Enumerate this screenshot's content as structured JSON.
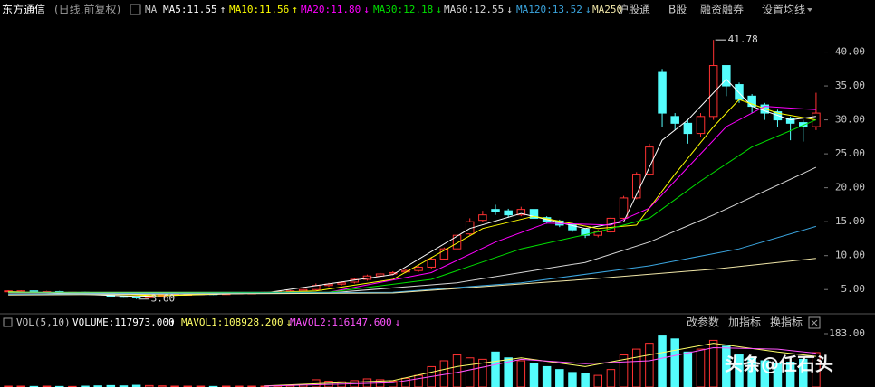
{
  "chart_data": {
    "type": "candlestick",
    "title": "东方通信",
    "subtitle": "(日线,前复权)",
    "ma_label": "MA",
    "toolbar": [
      "沪股通",
      "B股",
      "融资融券",
      "设置均线"
    ],
    "up_color": "#ff3232",
    "down_color": "#54fcfc",
    "open": [
      4.7,
      4.8,
      4.8,
      4.7,
      4.7,
      4.6,
      4.6,
      4.5,
      4.3,
      4.0,
      3.9,
      3.8,
      4.0,
      4.2,
      4.3,
      4.4,
      4.4,
      4.3,
      4.4,
      4.5,
      4.5,
      4.6,
      4.7,
      4.8,
      5.0,
      5.6,
      5.8,
      6.1,
      6.5,
      7.0,
      7.3,
      7.6,
      7.8,
      8.3,
      9.5,
      11.0,
      13.2,
      15.2,
      16.8,
      16.6,
      16.0,
      16.8,
      15.6,
      15.1,
      14.6,
      13.9,
      13.0,
      13.5,
      15.5,
      18.5,
      22.0,
      37.0,
      30.5,
      29.5,
      28.0,
      30.5,
      38.0,
      35.2,
      33.5,
      32.2,
      31.2,
      30.2,
      29.6,
      29.0
    ],
    "high": [
      4.9,
      4.9,
      4.9,
      4.8,
      4.8,
      4.7,
      4.7,
      4.6,
      4.4,
      4.1,
      4.0,
      4.1,
      4.3,
      4.4,
      4.4,
      4.5,
      4.5,
      4.5,
      4.6,
      4.6,
      4.7,
      4.8,
      4.9,
      5.2,
      5.9,
      6.0,
      6.2,
      6.7,
      7.2,
      7.5,
      7.7,
      8.0,
      8.6,
      9.8,
      11.2,
      13.3,
      15.5,
      16.6,
      17.5,
      16.9,
      17.2,
      16.9,
      15.8,
      15.3,
      14.8,
      14.0,
      13.8,
      15.8,
      18.8,
      22.3,
      26.5,
      37.5,
      31.0,
      30.0,
      31.0,
      41.78,
      38.0,
      35.5,
      33.8,
      32.5,
      31.5,
      30.5,
      30.0,
      34.0
    ],
    "low": [
      4.6,
      4.7,
      4.6,
      4.6,
      4.5,
      4.5,
      4.4,
      4.2,
      3.9,
      3.8,
      3.6,
      3.7,
      3.9,
      4.1,
      4.2,
      4.3,
      4.2,
      4.2,
      4.3,
      4.4,
      4.4,
      4.5,
      4.6,
      4.7,
      4.9,
      5.4,
      5.6,
      5.9,
      6.3,
      6.8,
      7.1,
      7.4,
      7.6,
      8.1,
      9.3,
      10.8,
      13.0,
      15.0,
      16.0,
      15.6,
      15.8,
      15.2,
      14.7,
      14.2,
      13.5,
      12.6,
      12.7,
      13.3,
      15.3,
      18.3,
      21.8,
      29.0,
      28.5,
      26.5,
      27.5,
      30.0,
      33.5,
      32.5,
      31.0,
      30.0,
      29.0,
      27.0,
      26.8,
      28.5
    ],
    "close": [
      4.8,
      4.8,
      4.7,
      4.7,
      4.6,
      4.6,
      4.5,
      4.3,
      4.0,
      3.9,
      3.8,
      4.0,
      4.2,
      4.3,
      4.3,
      4.4,
      4.3,
      4.4,
      4.5,
      4.5,
      4.6,
      4.7,
      4.8,
      5.0,
      5.6,
      5.8,
      6.0,
      6.5,
      7.0,
      7.3,
      7.5,
      7.8,
      8.3,
      9.5,
      11.0,
      13.0,
      15.0,
      16.0,
      16.5,
      16.0,
      16.8,
      15.5,
      15.0,
      14.5,
      13.8,
      13.0,
      13.5,
      15.5,
      18.5,
      22.0,
      26.0,
      31.0,
      29.5,
      28.0,
      30.5,
      38.0,
      35.0,
      33.0,
      32.0,
      31.0,
      30.0,
      29.5,
      29.0,
      31.0
    ],
    "volume": [
      3,
      3,
      2,
      3,
      2,
      2,
      3,
      4,
      5,
      4,
      6,
      5,
      4,
      3,
      3,
      3,
      2,
      3,
      3,
      3,
      3,
      4,
      5,
      8,
      25,
      20,
      18,
      22,
      28,
      25,
      20,
      30,
      40,
      70,
      90,
      110,
      100,
      95,
      120,
      100,
      90,
      80,
      70,
      60,
      50,
      45,
      40,
      60,
      110,
      130,
      150,
      175,
      165,
      120,
      130,
      160,
      140,
      110,
      100,
      90,
      80,
      85,
      95,
      118
    ],
    "annotations": [
      {
        "label": "41.78",
        "value": 41.78,
        "at": "high"
      },
      {
        "label": "3.60",
        "value": 3.6,
        "at": "low"
      }
    ],
    "moving_averages": [
      {
        "name": "MA5:11.55",
        "trend": "↑",
        "color": "#ffffff",
        "x": [
          0,
          10,
          20,
          30,
          36,
          40,
          45,
          48,
          51,
          53,
          56,
          58,
          61,
          63
        ],
        "values": [
          4.7,
          4.0,
          4.5,
          7.2,
          14,
          16.2,
          14,
          15,
          27,
          30,
          36,
          32,
          30,
          30.5
        ]
      },
      {
        "name": "MA10:11.56",
        "trend": "↑",
        "color": "#ffff00",
        "x": [
          0,
          12,
          24,
          30,
          37,
          41,
          46,
          49,
          52,
          55,
          57,
          60,
          63
        ],
        "values": [
          4.7,
          4.1,
          4.8,
          6.5,
          14,
          15.8,
          14,
          14.5,
          22,
          29,
          33,
          31,
          30
        ]
      },
      {
        "name": "MA20:11.80",
        "trend": "↓",
        "color": "#ff00ff",
        "x": [
          0,
          25,
          33,
          38,
          42,
          47,
          50,
          53,
          56,
          59,
          63
        ],
        "values": [
          4.6,
          4.6,
          7.5,
          12,
          14.8,
          14.5,
          17,
          23,
          29,
          32,
          31.5
        ]
      },
      {
        "name": "MA30:12.18",
        "trend": "↓",
        "color": "#00e000",
        "x": [
          0,
          25,
          33,
          40,
          46,
          50,
          54,
          58,
          63
        ],
        "values": [
          4.6,
          4.6,
          6.5,
          11,
          13.5,
          15.5,
          21,
          26,
          30
        ]
      },
      {
        "name": "MA60:12.55",
        "trend": "↓",
        "color": "#d8d8d8",
        "x": [
          0,
          25,
          35,
          45,
          50,
          55,
          63
        ],
        "values": [
          4.5,
          4.5,
          6.0,
          9,
          12,
          16,
          23
        ]
      },
      {
        "name": "MA120:13.52",
        "trend": "↓",
        "color": "#3ba6e0",
        "x": [
          0,
          30,
          40,
          50,
          57,
          63
        ],
        "values": [
          4.3,
          4.6,
          6.0,
          8.5,
          11,
          14.3
        ]
      },
      {
        "name": "MA250",
        "color": "#f0e6a8",
        "x": [
          0,
          30,
          45,
          55,
          63
        ],
        "values": [
          4.2,
          4.5,
          6.5,
          8.0,
          9.6
        ]
      }
    ],
    "ylim": [
      1.7,
      45
    ],
    "yticks": [
      {
        "value": 5,
        "label": "5.00"
      },
      {
        "value": 10,
        "label": "10.00"
      },
      {
        "value": 15,
        "label": "15.00"
      },
      {
        "value": 20,
        "label": "20.00"
      },
      {
        "value": 25,
        "label": "25.00"
      },
      {
        "value": 30,
        "label": "30.00"
      },
      {
        "value": 35,
        "label": "35.00"
      },
      {
        "value": 40,
        "label": "40.00"
      }
    ],
    "volume_header": "VOL(5,10)",
    "volume_label": "VOLUME:117973.000",
    "volume_trend": "↑",
    "volume_averages": [
      {
        "name": "MAVOL1:108928.200",
        "trend": "↓",
        "color": "#ffff66",
        "x": [
          20,
          30,
          35,
          40,
          45,
          50,
          55,
          60,
          63
        ],
        "values": [
          4,
          22,
          70,
          100,
          70,
          110,
          150,
          120,
          105
        ]
      },
      {
        "name": "MAVOL2:116147.600",
        "trend": "↓",
        "color": "#ff55ff",
        "x": [
          20,
          30,
          35,
          40,
          45,
          50,
          55,
          60,
          63
        ],
        "values": [
          3,
          15,
          50,
          95,
          80,
          90,
          135,
          130,
          116
        ]
      }
    ],
    "volume_ylim": [
      0,
      183
    ],
    "volume_yticks": [
      {
        "value": 183,
        "label": "183.00"
      }
    ],
    "volume_buttons": [
      "改参数",
      "加指标",
      "换指标"
    ],
    "watermark": "头条@任石头"
  }
}
